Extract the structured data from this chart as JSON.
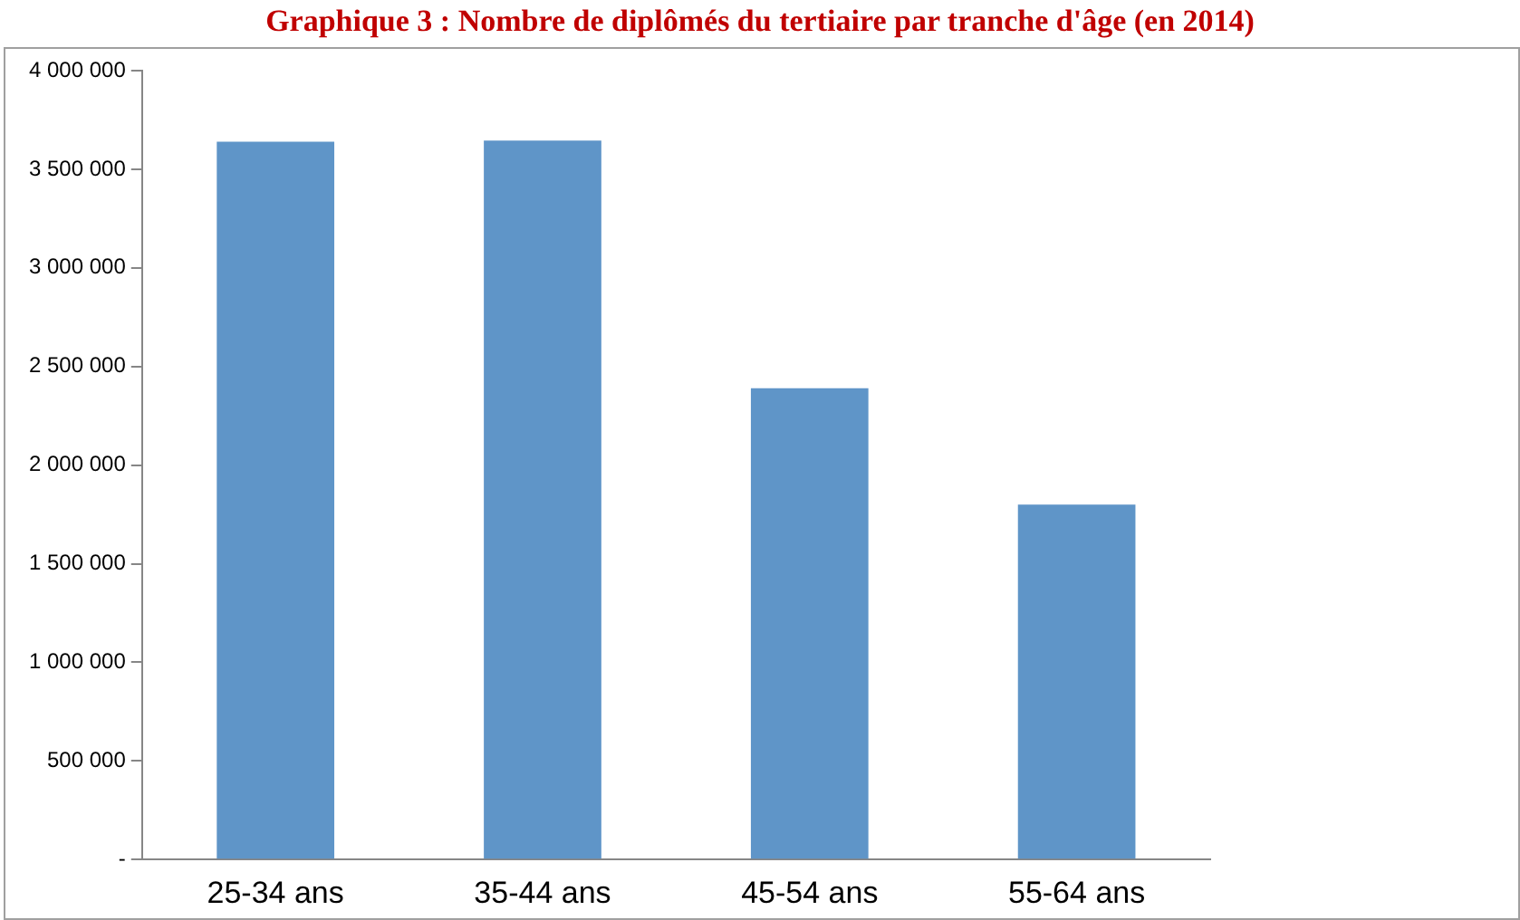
{
  "chart_data": {
    "type": "bar",
    "title": "Graphique 3 : Nombre de diplômés du tertiaire par tranche d'âge (en 2014)",
    "categories": [
      "25-34 ans",
      "35-44 ans",
      "45-54 ans",
      "55-64 ans"
    ],
    "values": [
      3640000,
      3645000,
      2390000,
      1800000
    ],
    "color": "#5f95c8",
    "ylim": [
      0,
      4000000
    ],
    "yticks": [
      {
        "value": 0,
        "label": "-"
      },
      {
        "value": 500000,
        "label": "500 000"
      },
      {
        "value": 1000000,
        "label": "1 000 000"
      },
      {
        "value": 1500000,
        "label": "1 500 000"
      },
      {
        "value": 2000000,
        "label": "2 000 000"
      },
      {
        "value": 2500000,
        "label": "2 500 000"
      },
      {
        "value": 3000000,
        "label": "3 000 000"
      },
      {
        "value": 3500000,
        "label": "3 500 000"
      },
      {
        "value": 4000000,
        "label": "4 000 000"
      }
    ],
    "grid": false,
    "legend": false
  }
}
